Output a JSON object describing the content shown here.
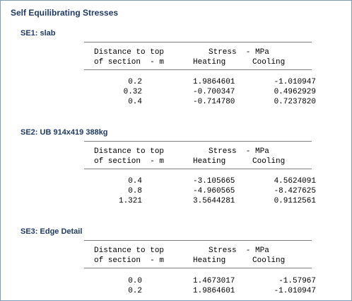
{
  "title": "Self Equilibrating Stresses",
  "headers": {
    "distance_line1": "Distance to top",
    "distance_line2": "of section  - m",
    "stress": "Stress  - MPa",
    "heating": "Heating",
    "cooling": "Cooling"
  },
  "sections": [
    {
      "heading": "SE1: slab",
      "rows": [
        {
          "distance": "0.2",
          "heating": "1.9864601",
          "cooling": "-1.010947"
        },
        {
          "distance": "0.32",
          "heating": "-0.700347",
          "cooling": "0.4962929"
        },
        {
          "distance": "0.4",
          "heating": "-0.714780",
          "cooling": "0.7237820"
        }
      ]
    },
    {
      "heading": "SE2: UB 914x419 388kg",
      "rows": [
        {
          "distance": "0.4",
          "heating": "-3.105665",
          "cooling": "4.5624091"
        },
        {
          "distance": "0.8",
          "heating": "-4.960565",
          "cooling": "-8.427625"
        },
        {
          "distance": "1.321",
          "heating": "3.5644281",
          "cooling": "0.9112561"
        }
      ]
    },
    {
      "heading": "SE3: Edge Detail",
      "rows": [
        {
          "distance": "0.0",
          "heating": "1.4673017",
          "cooling": "-1.57967"
        },
        {
          "distance": "0.2",
          "heating": "1.9864601",
          "cooling": "-1.010947"
        }
      ]
    }
  ]
}
